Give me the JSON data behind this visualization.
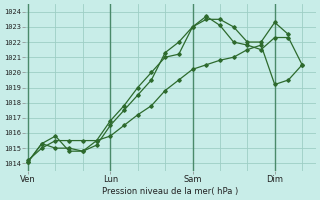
{
  "bg_color": "#c8ede8",
  "line_color": "#2d6a2d",
  "grid_color": "#9ecec5",
  "vline_color": "#4a8a6a",
  "ylabel": "Pression niveau de la mer( hPa )",
  "ylim": [
    1013.5,
    1024.5
  ],
  "yticks": [
    1014,
    1015,
    1016,
    1017,
    1018,
    1019,
    1020,
    1021,
    1022,
    1023,
    1024
  ],
  "xtick_labels": [
    "Ven",
    "Lun",
    "Sam",
    "Dim"
  ],
  "xtick_positions": [
    0,
    3,
    6,
    9
  ],
  "xlim": [
    -0.1,
    10.5
  ],
  "line1_x": [
    0,
    0.5,
    1.0,
    1.5,
    2.0,
    2.5,
    3.0,
    3.5,
    4.0,
    4.5,
    5.0,
    5.5,
    6.0,
    6.5,
    7.0,
    7.5,
    8.0,
    8.5,
    9.0,
    9.5
  ],
  "line1_y": [
    1014.1,
    1015.3,
    1015.8,
    1014.8,
    1014.8,
    1015.5,
    1016.8,
    1017.8,
    1019.0,
    1020.0,
    1021.0,
    1021.2,
    1023.0,
    1023.5,
    1023.5,
    1023.0,
    1022.0,
    1022.0,
    1023.3,
    1022.5
  ],
  "line2_x": [
    0,
    0.5,
    1.0,
    1.5,
    2.0,
    2.5,
    3.0,
    3.5,
    4.0,
    4.5,
    5.0,
    5.5,
    6.0,
    6.5,
    7.0,
    7.5,
    8.0,
    8.5,
    9.0,
    9.5,
    10.0
  ],
  "line2_y": [
    1014.1,
    1015.3,
    1015.0,
    1015.0,
    1014.8,
    1015.2,
    1016.5,
    1017.5,
    1018.5,
    1019.5,
    1021.3,
    1022.0,
    1023.0,
    1023.7,
    1023.1,
    1022.0,
    1021.8,
    1021.5,
    1022.3,
    1022.3,
    1020.5
  ],
  "line3_x": [
    0,
    0.5,
    1.0,
    1.5,
    2.0,
    2.5,
    3.0,
    3.5,
    4.0,
    4.5,
    5.0,
    5.5,
    6.0,
    6.5,
    7.0,
    7.5,
    8.0,
    8.5,
    9.0,
    9.5,
    10.0
  ],
  "line3_y": [
    1014.2,
    1015.0,
    1015.5,
    1015.5,
    1015.5,
    1015.5,
    1015.8,
    1016.5,
    1017.2,
    1017.8,
    1018.8,
    1019.5,
    1020.2,
    1020.5,
    1020.8,
    1021.0,
    1021.5,
    1021.8,
    1019.2,
    1019.5,
    1020.5
  ]
}
